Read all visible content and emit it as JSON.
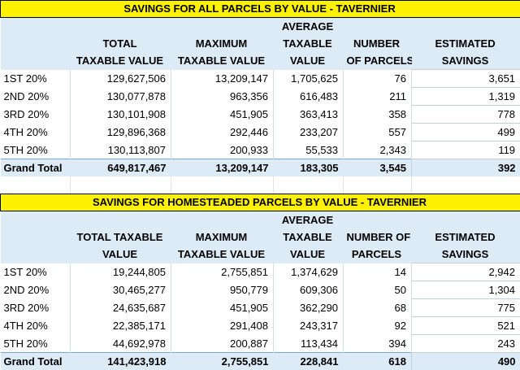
{
  "tables": [
    {
      "title": "SAVINGS FOR ALL PARCELS BY VALUE - TAVERNIER",
      "headers": {
        "row1": [
          "",
          "",
          "",
          "AVERAGE",
          "",
          ""
        ],
        "row2": [
          "",
          "TOTAL",
          "MAXIMUM",
          "TAXABLE",
          "NUMBER",
          "ESTIMATED"
        ],
        "row3": [
          "",
          "TAXABLE VALUE",
          "TAXABLE VALUE",
          "VALUE",
          "OF PARCELS",
          "SAVINGS"
        ]
      },
      "rows": [
        {
          "label": "1ST 20%",
          "total": "129,627,506",
          "max": "13,209,147",
          "avg": "1,705,625",
          "count": "76",
          "savings": "3,651"
        },
        {
          "label": "2ND 20%",
          "total": "130,077,878",
          "max": "963,356",
          "avg": "616,483",
          "count": "211",
          "savings": "1,319"
        },
        {
          "label": "3RD 20%",
          "total": "130,101,908",
          "max": "451,905",
          "avg": "363,413",
          "count": "358",
          "savings": "778"
        },
        {
          "label": "4TH 20%",
          "total": "129,896,368",
          "max": "292,446",
          "avg": "233,207",
          "count": "557",
          "savings": "499"
        },
        {
          "label": "5TH 20%",
          "total": "130,113,807",
          "max": "200,933",
          "avg": "55,533",
          "count": "2,343",
          "savings": "119"
        }
      ],
      "grand_total": {
        "label": "Grand Total",
        "total": "649,817,467",
        "max": "13,209,147",
        "avg": "183,305",
        "count": "3,545",
        "savings": "392"
      }
    },
    {
      "title": "SAVINGS FOR HOMESTEADED PARCELS BY VALUE - TAVERNIER",
      "headers": {
        "row1": [
          "",
          "",
          "",
          "AVERAGE",
          "",
          ""
        ],
        "row2": [
          "",
          "TOTAL TAXABLE",
          "MAXIMUM",
          "TAXABLE",
          "NUMBER OF",
          "ESTIMATED"
        ],
        "row3": [
          "",
          "VALUE",
          "TAXABLE VALUE",
          "VALUE",
          "PARCELS",
          "SAVINGS"
        ]
      },
      "rows": [
        {
          "label": "1ST 20%",
          "total": "19,244,805",
          "max": "2,755,851",
          "avg": "1,374,629",
          "count": "14",
          "savings": "2,942"
        },
        {
          "label": "2ND 20%",
          "total": "30,465,277",
          "max": "950,779",
          "avg": "609,306",
          "count": "50",
          "savings": "1,304"
        },
        {
          "label": "3RD 20%",
          "total": "24,635,687",
          "max": "451,905",
          "avg": "362,290",
          "count": "68",
          "savings": "775"
        },
        {
          "label": "4TH 20%",
          "total": "22,385,171",
          "max": "291,408",
          "avg": "243,317",
          "count": "92",
          "savings": "521"
        },
        {
          "label": "5TH 20%",
          "total": "44,692,978",
          "max": "200,887",
          "avg": "113,434",
          "count": "394",
          "savings": "243"
        }
      ],
      "grand_total": {
        "label": "Grand Total",
        "total": "141,423,918",
        "max": "2,755,851",
        "avg": "228,841",
        "count": "618",
        "savings": "490"
      }
    }
  ],
  "colors": {
    "title_bg": "#fff200",
    "header_bg": "#ddebf7",
    "data_bg": "#ffffff"
  }
}
